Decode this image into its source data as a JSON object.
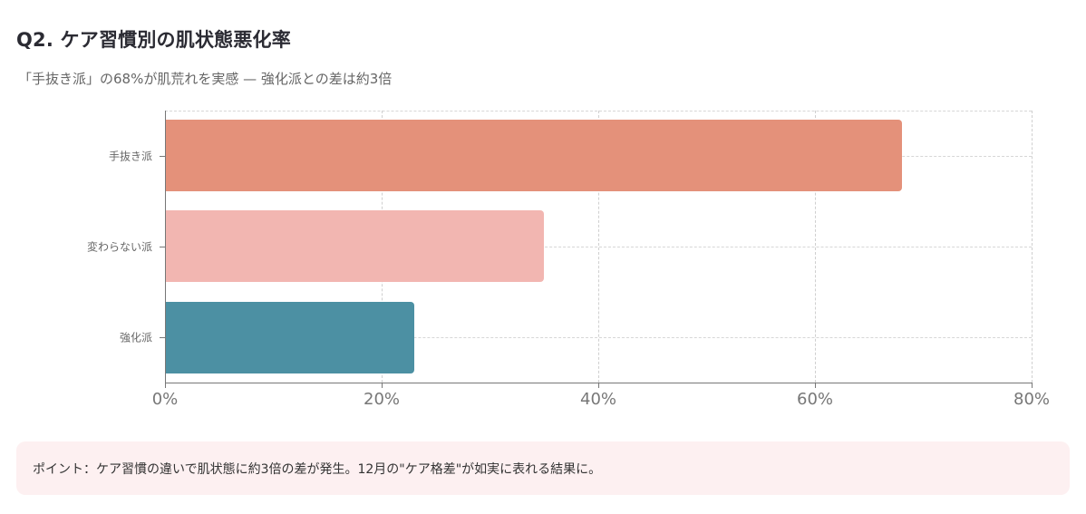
{
  "header": {
    "title": "Q2. ケア習慣別の肌状態悪化率",
    "subtitle": "「手抜き派」の68%が肌荒れを実感 — 強化派との差は約3倍"
  },
  "note": {
    "text": "ポイント：ケア習慣の違いで肌状態に約3倍の差が発生。12月の\"ケア格差\"が如実に表れる結果に。"
  },
  "colors": {
    "bar_1": "#e4917a",
    "bar_2": "#f2b6b1",
    "bar_3": "#4c90a3",
    "note_bg": "#fdf0f1"
  },
  "chart_data": {
    "type": "bar",
    "orientation": "horizontal",
    "title": "Q2. ケア習慣別の肌状態悪化率",
    "subtitle": "「手抜き派」の68%が肌荒れを実感 — 強化派との差は約3倍",
    "categories": [
      "手抜き派",
      "変わらない派",
      "強化派"
    ],
    "values": [
      68,
      35,
      23
    ],
    "colors": [
      "#e4917a",
      "#f2b6b1",
      "#4c90a3"
    ],
    "xlabel": "",
    "ylabel": "",
    "xlim": [
      0,
      80
    ],
    "x_ticks": [
      "0%",
      "20%",
      "40%",
      "60%",
      "80%"
    ],
    "grid": true,
    "legend": "none"
  }
}
